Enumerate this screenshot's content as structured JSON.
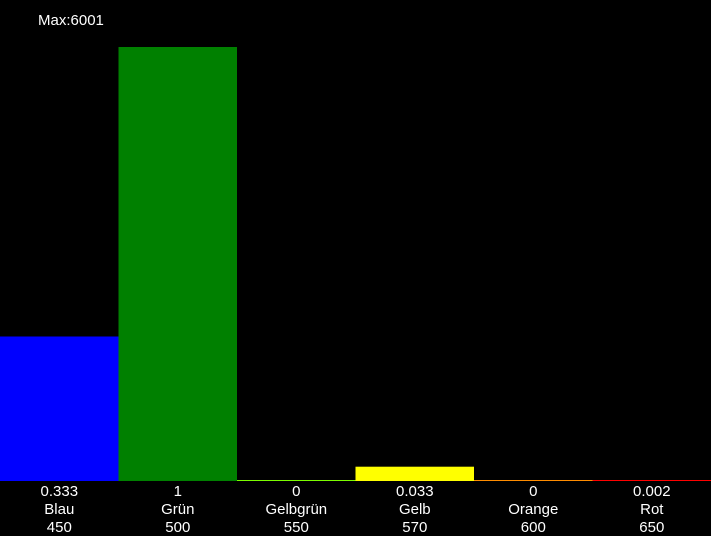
{
  "max_text": "Max:6001",
  "chart_data": {
    "type": "bar",
    "categories": [
      "Blau",
      "Grün",
      "Gelbgrün",
      "Gelb",
      "Orange",
      "Rot"
    ],
    "wavelengths": [
      "450",
      "500",
      "550",
      "570",
      "600",
      "650"
    ],
    "value_labels": [
      "0.333",
      "1",
      "0",
      "0.033",
      "0",
      "0.002"
    ],
    "values": [
      0.333,
      1,
      0,
      0.033,
      0,
      0.002
    ],
    "colors": [
      "#0000ff",
      "#008000",
      "#7cfc00",
      "#ffff00",
      "#ff8c00",
      "#ff0000"
    ],
    "ylim": [
      0,
      1
    ],
    "max_value": 6001,
    "grid": false,
    "background": "#000000"
  }
}
